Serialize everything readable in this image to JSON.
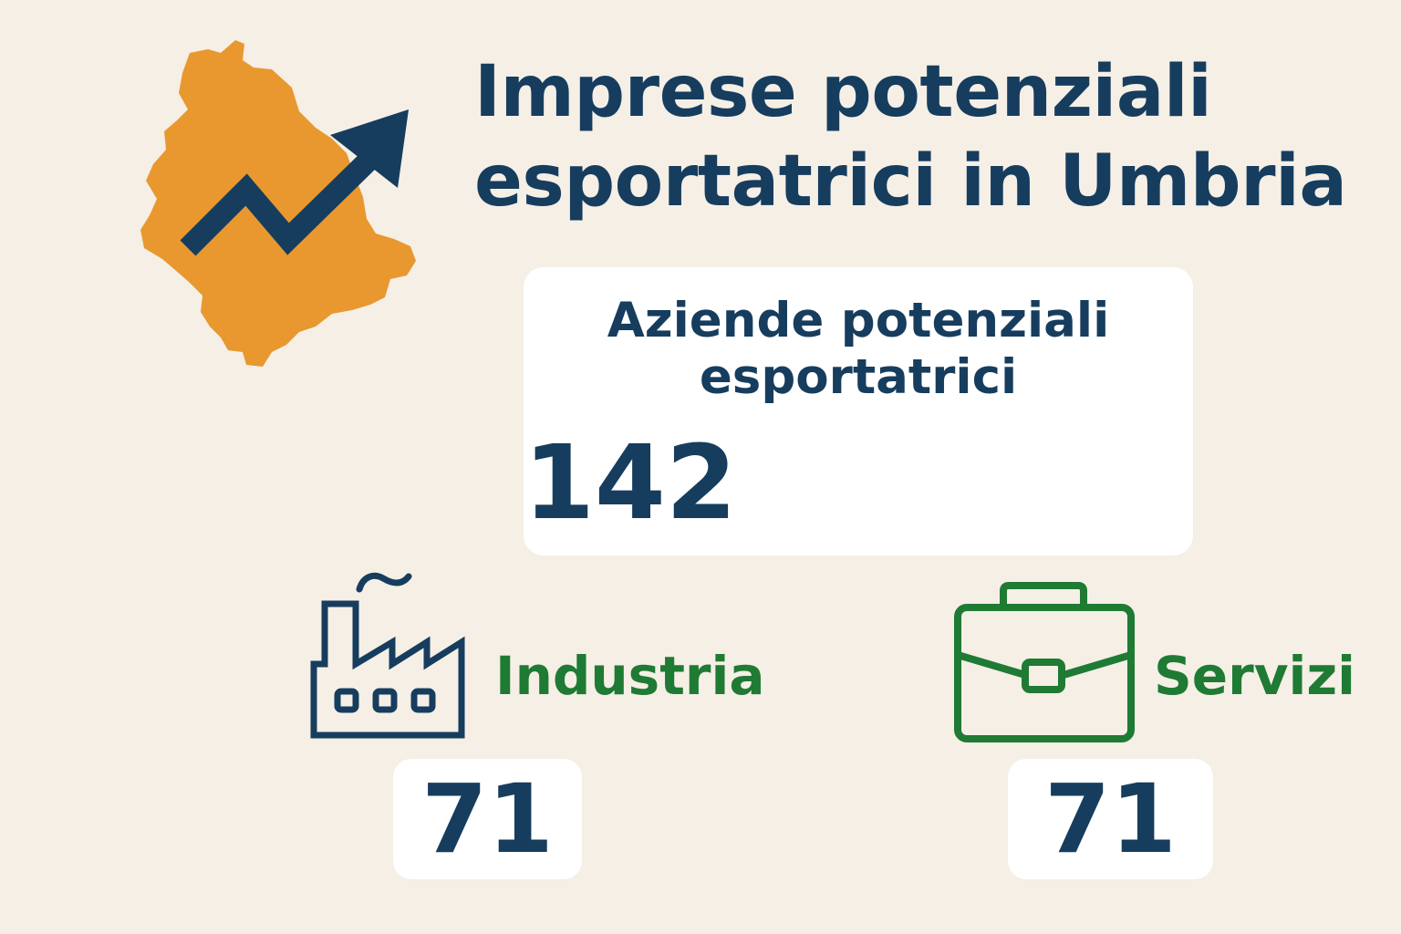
{
  "title": {
    "line1": "Imprese potenziali",
    "line2": "esportatrici in Umbria"
  },
  "total": {
    "label_line1": "Aziende potenziali",
    "label_line2": "esportatrici",
    "value": "142"
  },
  "sectors": [
    {
      "label": "Industria",
      "value": "71",
      "icon": "factory-icon",
      "color": "#1f7a34"
    },
    {
      "label": "Servizi",
      "value": "71",
      "icon": "briefcase-icon",
      "color": "#1f7a34"
    }
  ],
  "icons": {
    "map": "umbria-map-icon",
    "trend": "trend-arrow-icon"
  },
  "colors": {
    "background": "#f5efe6",
    "navy": "#163d5e",
    "orange": "#e8982f",
    "green": "#1f7a34",
    "card": "#ffffff"
  }
}
